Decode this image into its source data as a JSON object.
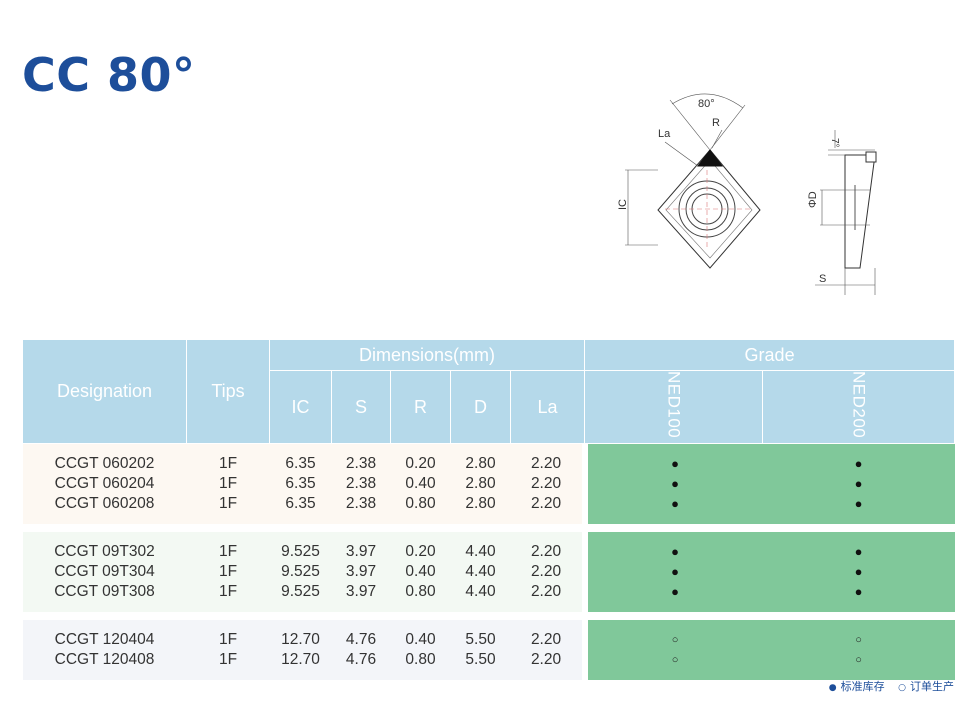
{
  "title": "CC 80°",
  "diagram": {
    "angle_label": "80°",
    "r_label": "R",
    "la_label": "La",
    "ic_label": "IC",
    "d_label": "ΦD",
    "s_label": "S",
    "clearance_label": "7°"
  },
  "table": {
    "header": {
      "designation": "Designation",
      "tips": "Tips",
      "dimensions": "Dimensions(mm)",
      "grade": "Grade",
      "dim_cols": [
        "IC",
        "S",
        "R",
        "D",
        "La"
      ],
      "grade_cols": [
        "NED100",
        "NED200"
      ]
    },
    "groups": [
      {
        "designations": [
          "CCGT 060202",
          "CCGT 060204",
          "CCGT 060208"
        ],
        "tips": [
          "1F",
          "1F",
          "1F"
        ],
        "ic": [
          "6.35",
          "6.35",
          "6.35"
        ],
        "s": [
          "2.38",
          "2.38",
          "2.38"
        ],
        "r": [
          "0.20",
          "0.40",
          "0.80"
        ],
        "d": [
          "2.80",
          "2.80",
          "2.80"
        ],
        "la": [
          "2.20",
          "2.20",
          "2.20"
        ],
        "ned100": [
          "●",
          "●",
          "●"
        ],
        "ned200": [
          "●",
          "●",
          "●"
        ]
      },
      {
        "designations": [
          "CCGT 09T302",
          "CCGT 09T304",
          "CCGT 09T308"
        ],
        "tips": [
          "1F",
          "1F",
          "1F"
        ],
        "ic": [
          "9.525",
          "9.525",
          "9.525"
        ],
        "s": [
          "3.97",
          "3.97",
          "3.97"
        ],
        "r": [
          "0.20",
          "0.40",
          "0.80"
        ],
        "d": [
          "4.40",
          "4.40",
          "4.40"
        ],
        "la": [
          "2.20",
          "2.20",
          "2.20"
        ],
        "ned100": [
          "●",
          "●",
          "●"
        ],
        "ned200": [
          "●",
          "●",
          "●"
        ]
      },
      {
        "designations": [
          "CCGT 120404",
          "CCGT 120408"
        ],
        "tips": [
          "1F",
          "1F"
        ],
        "ic": [
          "12.70",
          "12.70"
        ],
        "s": [
          "4.76",
          "4.76"
        ],
        "r": [
          "0.40",
          "0.80"
        ],
        "d": [
          "5.50",
          "5.50"
        ],
        "la": [
          "2.20",
          "2.20"
        ],
        "ned100": [
          "○",
          "○"
        ],
        "ned200": [
          "○",
          "○"
        ]
      }
    ]
  },
  "legend": {
    "stock_symbol": "●",
    "stock_label": "标准库存",
    "order_symbol": "○",
    "order_label": "订单生产"
  },
  "colors": {
    "title": "#1d4e9a",
    "header_bg": "#b5d9ea",
    "grade_bg": "#80c89a"
  }
}
